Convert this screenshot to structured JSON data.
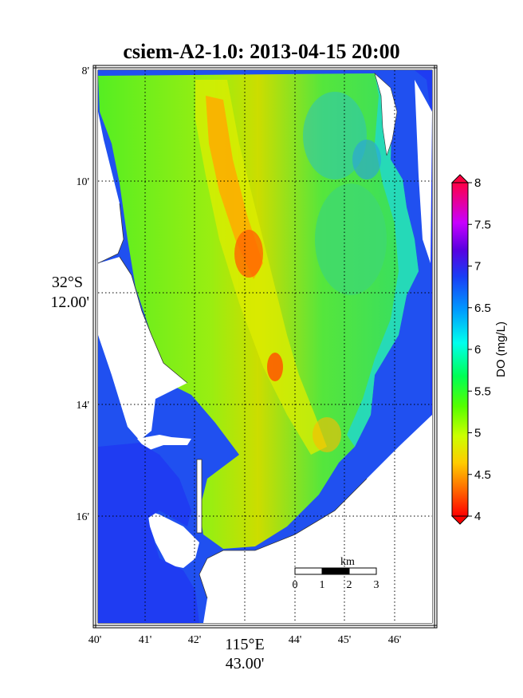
{
  "title": "csiem-A2-1.0: 2013-04-15 20:00",
  "colors": {
    "ocean_high_do": "#1f3cf2",
    "land": "#ffffff",
    "frame": "#000000",
    "grid": "#000000"
  },
  "axes": {
    "x_ticks": [
      "40'",
      "41'",
      "42'",
      "44'",
      "45'",
      "46'"
    ],
    "x_major": {
      "deg": "115°E",
      "min": "43.00'"
    },
    "y_ticks": [
      "8'",
      "10'",
      "14'",
      "16'"
    ],
    "y_major": {
      "deg": "32°S",
      "min": "12.00'"
    }
  },
  "scalebar": {
    "unit": "km",
    "labels": [
      "0",
      "1",
      "2",
      "3"
    ]
  },
  "colorbar": {
    "label": "DO (mg/L)",
    "min": 4,
    "max": 8,
    "ticks": [
      "8",
      "7.5",
      "7",
      "6.5",
      "6",
      "5.5",
      "5",
      "4.5",
      "4"
    ],
    "colormap": [
      "#ff0000",
      "#ff7f00",
      "#ffd700",
      "#e5ff00",
      "#7fff00",
      "#00ff00",
      "#00ff80",
      "#00ffff",
      "#0080ff",
      "#0000ff",
      "#7f00ff",
      "#ff00ff",
      "#ff0080"
    ]
  }
}
